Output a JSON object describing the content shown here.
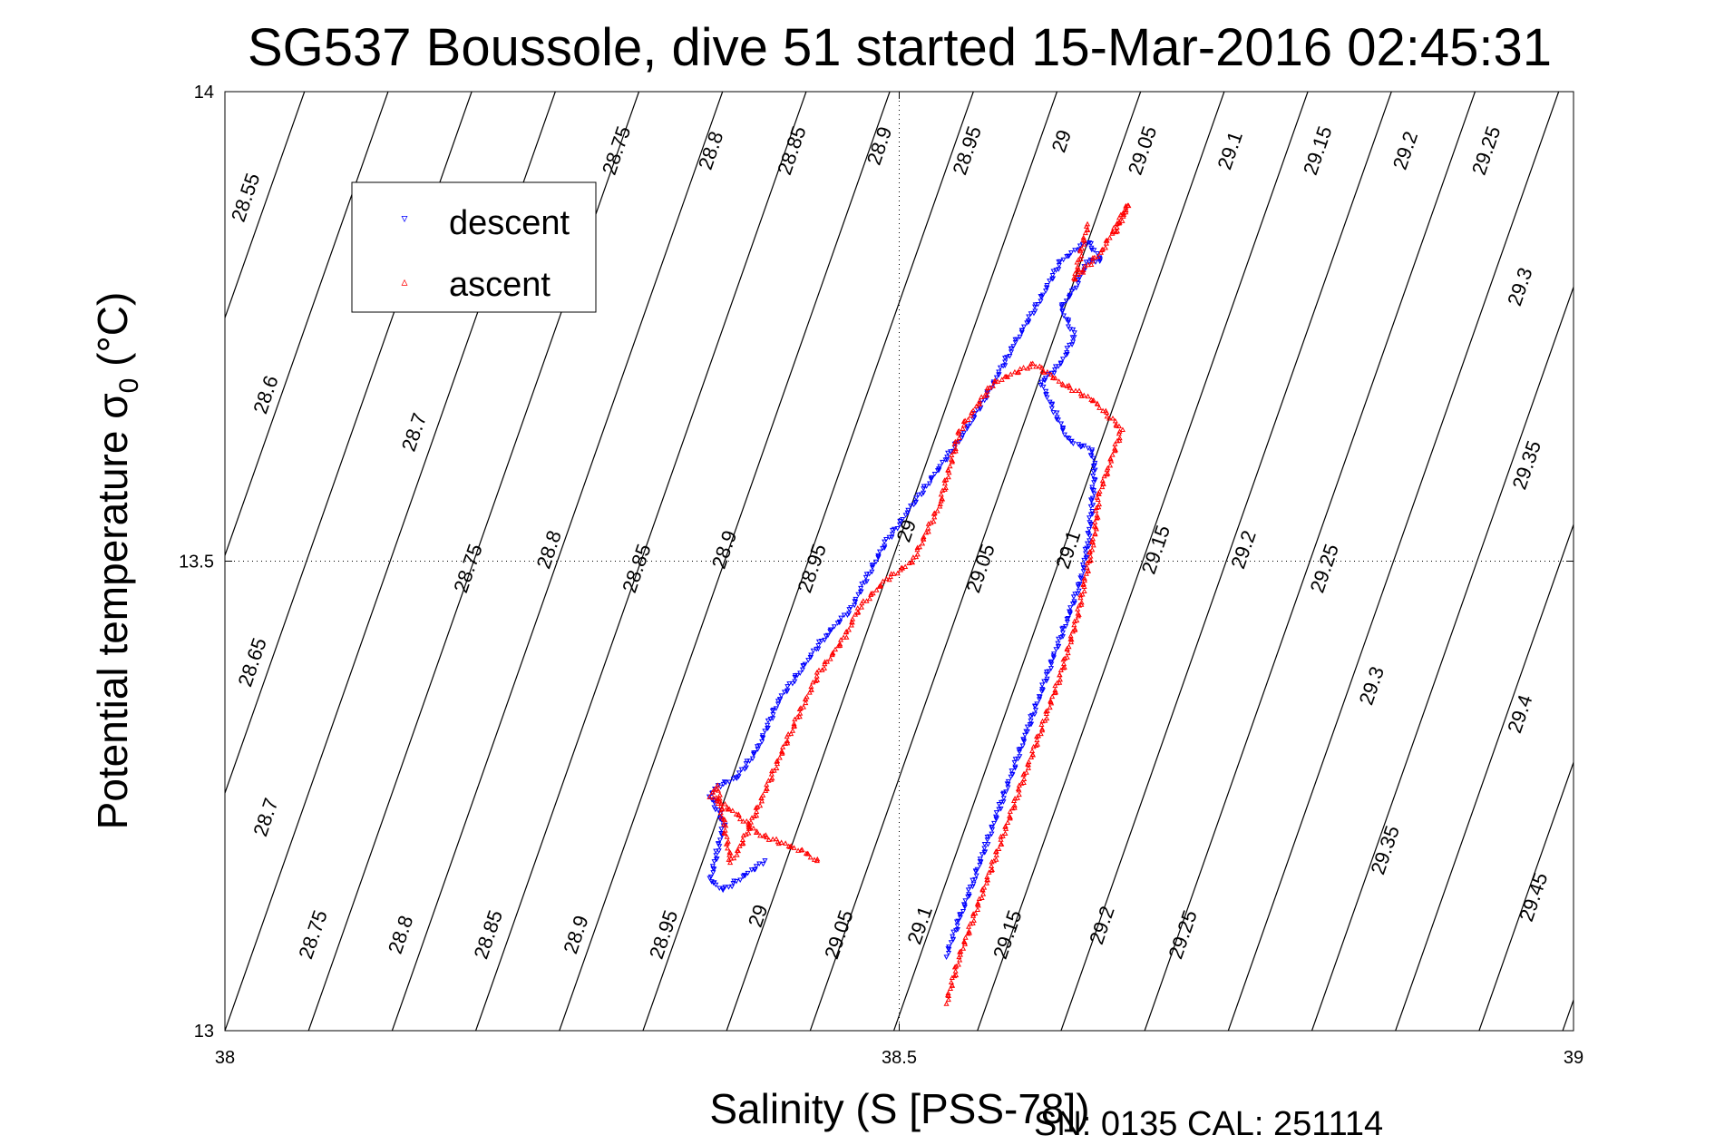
{
  "chart_data": {
    "type": "scatter",
    "title": "SG537 Boussole, dive 51 started 15-Mar-2016 02:45:31",
    "xlabel": "Salinity (S [PSS-78])",
    "ylabel_main": "Potential temperature σ",
    "ylabel_sub": "0",
    "ylabel_unit": " (°C)",
    "xlim": [
      38,
      39
    ],
    "ylim": [
      13,
      14
    ],
    "xticks": [
      38,
      38.5,
      39
    ],
    "xtick_labels": [
      "38",
      "38.5",
      "39"
    ],
    "yticks": [
      13,
      13.5,
      14
    ],
    "ytick_labels": [
      "13",
      "13.5",
      "14"
    ],
    "grid": "dotted",
    "legend_position": "top-left",
    "legend": [
      {
        "name": "descent",
        "color": "#0000ff",
        "marker": "▿"
      },
      {
        "name": "ascent",
        "color": "#ff0000",
        "marker": "▵"
      }
    ],
    "footnote": "SN: 0135  CAL: 251114",
    "density_isolines": {
      "levels": [
        "28.55",
        "28.6",
        "28.65",
        "28.7",
        "28.75",
        "28.8",
        "28.85",
        "28.9",
        "28.95",
        "29",
        "29.05",
        "29.1",
        "29.15",
        "29.2",
        "29.25",
        "29.3",
        "29.35",
        "29.4",
        "29.45"
      ],
      "line_color": "#000000"
    },
    "isoline_labels": [
      {
        "text": "28.55",
        "s": 38.02,
        "t": 13.885
      },
      {
        "text": "28.75",
        "s": 38.295,
        "t": 13.935
      },
      {
        "text": "28.8",
        "s": 38.365,
        "t": 13.935
      },
      {
        "text": "28.85",
        "s": 38.425,
        "t": 13.935
      },
      {
        "text": "28.9",
        "s": 38.49,
        "t": 13.94
      },
      {
        "text": "28.95",
        "s": 38.555,
        "t": 13.935
      },
      {
        "text": "29",
        "s": 38.625,
        "t": 13.945
      },
      {
        "text": "29.05",
        "s": 38.685,
        "t": 13.935
      },
      {
        "text": "29.1",
        "s": 38.75,
        "t": 13.935
      },
      {
        "text": "29.15",
        "s": 38.815,
        "t": 13.935
      },
      {
        "text": "29.2",
        "s": 38.88,
        "t": 13.935
      },
      {
        "text": "29.25",
        "s": 38.94,
        "t": 13.935
      },
      {
        "text": "28.6",
        "s": 38.035,
        "t": 13.675
      },
      {
        "text": "28.7",
        "s": 38.145,
        "t": 13.635
      },
      {
        "text": "29.3",
        "s": 38.965,
        "t": 13.79
      },
      {
        "text": "29.35",
        "s": 38.97,
        "t": 13.6
      },
      {
        "text": "28.75",
        "s": 38.185,
        "t": 13.49
      },
      {
        "text": "28.8",
        "s": 38.245,
        "t": 13.51
      },
      {
        "text": "28.85",
        "s": 38.31,
        "t": 13.49
      },
      {
        "text": "28.9",
        "s": 38.375,
        "t": 13.51
      },
      {
        "text": "28.95",
        "s": 38.44,
        "t": 13.49
      },
      {
        "text": "29",
        "s": 38.51,
        "t": 13.53
      },
      {
        "text": "29.05",
        "s": 38.565,
        "t": 13.49
      },
      {
        "text": "29.1",
        "s": 38.63,
        "t": 13.51
      },
      {
        "text": "29.15",
        "s": 38.695,
        "t": 13.51
      },
      {
        "text": "29.2",
        "s": 38.76,
        "t": 13.51
      },
      {
        "text": "29.25",
        "s": 38.82,
        "t": 13.49
      },
      {
        "text": "28.65",
        "s": 38.025,
        "t": 13.39
      },
      {
        "text": "29.3",
        "s": 38.855,
        "t": 13.365
      },
      {
        "text": "29.4",
        "s": 38.965,
        "t": 13.335
      },
      {
        "text": "28.7",
        "s": 38.035,
        "t": 13.225
      },
      {
        "text": "29.35",
        "s": 38.865,
        "t": 13.19
      },
      {
        "text": "29.45",
        "s": 38.975,
        "t": 13.14
      },
      {
        "text": "28.75",
        "s": 38.07,
        "t": 13.1
      },
      {
        "text": "28.8",
        "s": 38.135,
        "t": 13.1
      },
      {
        "text": "28.85",
        "s": 38.2,
        "t": 13.1
      },
      {
        "text": "28.9",
        "s": 38.265,
        "t": 13.1
      },
      {
        "text": "28.95",
        "s": 38.33,
        "t": 13.1
      },
      {
        "text": "29",
        "s": 38.4,
        "t": 13.12
      },
      {
        "text": "29.05",
        "s": 38.46,
        "t": 13.1
      },
      {
        "text": "29.1",
        "s": 38.52,
        "t": 13.11
      },
      {
        "text": "29.15",
        "s": 38.585,
        "t": 13.1
      },
      {
        "text": "29.2",
        "s": 38.655,
        "t": 13.11
      },
      {
        "text": "29.25",
        "s": 38.715,
        "t": 13.1
      }
    ],
    "series": [
      {
        "name": "descent",
        "color": "#0000ff",
        "points": [
          [
            38.535,
            13.08
          ],
          [
            38.545,
            13.12
          ],
          [
            38.555,
            13.16
          ],
          [
            38.565,
            13.2
          ],
          [
            38.575,
            13.24
          ],
          [
            38.585,
            13.28
          ],
          [
            38.595,
            13.32
          ],
          [
            38.605,
            13.36
          ],
          [
            38.615,
            13.4
          ],
          [
            38.625,
            13.44
          ],
          [
            38.635,
            13.48
          ],
          [
            38.64,
            13.52
          ],
          [
            38.643,
            13.56
          ],
          [
            38.645,
            13.6
          ],
          [
            38.642,
            13.62
          ],
          [
            38.63,
            13.625
          ],
          [
            38.625,
            13.63
          ],
          [
            38.615,
            13.66
          ],
          [
            38.605,
            13.69
          ],
          [
            38.62,
            13.71
          ],
          [
            38.63,
            13.74
          ],
          [
            38.62,
            13.77
          ],
          [
            38.63,
            13.79
          ],
          [
            38.64,
            13.82
          ],
          [
            38.65,
            13.82
          ],
          [
            38.64,
            13.84
          ],
          [
            38.62,
            13.82
          ],
          [
            38.605,
            13.78
          ],
          [
            38.585,
            13.73
          ],
          [
            38.57,
            13.69
          ],
          [
            38.55,
            13.64
          ],
          [
            38.53,
            13.6
          ],
          [
            38.51,
            13.56
          ],
          [
            38.49,
            13.52
          ],
          [
            38.475,
            13.48
          ],
          [
            38.465,
            13.45
          ],
          [
            38.445,
            13.42
          ],
          [
            38.425,
            13.38
          ],
          [
            38.41,
            13.35
          ],
          [
            38.395,
            13.3
          ],
          [
            38.38,
            13.27
          ],
          [
            38.365,
            13.26
          ],
          [
            38.36,
            13.25
          ],
          [
            38.37,
            13.22
          ],
          [
            38.365,
            13.19
          ],
          [
            38.36,
            13.16
          ],
          [
            38.37,
            13.15
          ],
          [
            38.4,
            13.18
          ]
        ]
      },
      {
        "name": "ascent",
        "color": "#ff0000",
        "points": [
          [
            38.535,
            13.03
          ],
          [
            38.545,
            13.08
          ],
          [
            38.56,
            13.14
          ],
          [
            38.575,
            13.2
          ],
          [
            38.59,
            13.26
          ],
          [
            38.605,
            13.32
          ],
          [
            38.62,
            13.38
          ],
          [
            38.632,
            13.44
          ],
          [
            38.638,
            13.48
          ],
          [
            38.645,
            13.53
          ],
          [
            38.648,
            13.57
          ],
          [
            38.655,
            13.6
          ],
          [
            38.665,
            13.64
          ],
          [
            38.645,
            13.67
          ],
          [
            38.62,
            13.69
          ],
          [
            38.6,
            13.71
          ],
          [
            38.57,
            13.69
          ],
          [
            38.545,
            13.64
          ],
          [
            38.53,
            13.56
          ],
          [
            38.52,
            13.53
          ],
          [
            38.51,
            13.5
          ],
          [
            38.49,
            13.48
          ],
          [
            38.47,
            13.45
          ],
          [
            38.46,
            13.42
          ],
          [
            38.44,
            13.38
          ],
          [
            38.42,
            13.32
          ],
          [
            38.39,
            13.22
          ],
          [
            38.38,
            13.19
          ],
          [
            38.375,
            13.18
          ],
          [
            38.37,
            13.22
          ],
          [
            38.365,
            13.26
          ],
          [
            38.36,
            13.25
          ],
          [
            38.38,
            13.23
          ],
          [
            38.395,
            13.21
          ],
          [
            38.43,
            13.19
          ],
          [
            38.44,
            13.18
          ],
          [
            38.66,
            13.85
          ],
          [
            38.67,
            13.88
          ],
          [
            38.65,
            13.83
          ],
          [
            38.63,
            13.8
          ],
          [
            38.64,
            13.86
          ]
        ]
      }
    ]
  }
}
